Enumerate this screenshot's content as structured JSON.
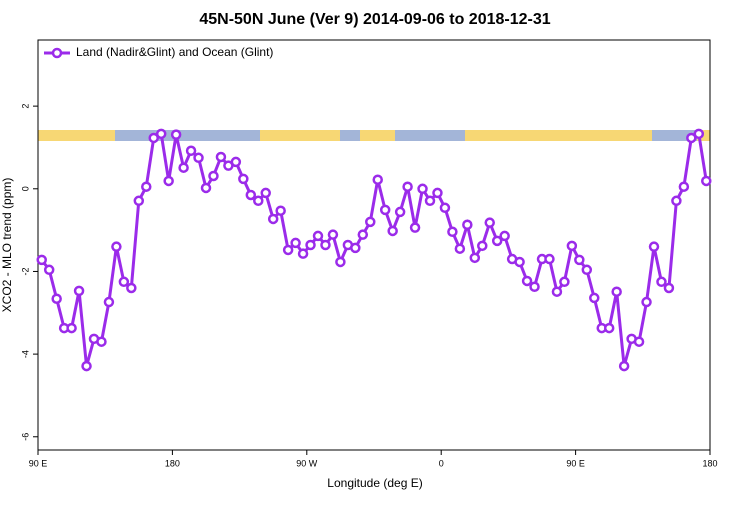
{
  "chart_data": {
    "type": "line",
    "title": "45N-50N June (Ver 9)   2014-09-06 to 2018-12-31",
    "x_label": "Longitude (deg E)",
    "y_label": "XCO2 - MLO trend (ppm)",
    "xlim": [
      90,
      540
    ],
    "ylim": [
      -6.32,
      3.6
    ],
    "xticks": [
      {
        "value": 90,
        "label": "90 E"
      },
      {
        "value": 180,
        "label": "180"
      },
      {
        "value": 270,
        "label": "90 W"
      },
      {
        "value": 360,
        "label": "0"
      },
      {
        "value": 450,
        "label": "90 E"
      },
      {
        "value": 540,
        "label": "180"
      }
    ],
    "yticks": [
      2,
      0,
      -2,
      -4,
      -6
    ],
    "grid": false,
    "legend": "top-left",
    "x": [
      92.5,
      97.5,
      102.5,
      107.5,
      112.5,
      117.5,
      122.5,
      127.5,
      132.5,
      137.5,
      142.5,
      147.5,
      152.5,
      157.5,
      162.5,
      167.5,
      172.5,
      177.5,
      182.5,
      187.5,
      192.5,
      197.5,
      202.5,
      207.5,
      212.5,
      217.5,
      222.5,
      227.5,
      232.5,
      237.5,
      242.5,
      247.5,
      252.5,
      257.5,
      262.5,
      267.5,
      272.5,
      277.5,
      282.5,
      287.5,
      292.5,
      297.5,
      302.5,
      307.5,
      312.5,
      317.5,
      322.5,
      327.5,
      332.5,
      337.5,
      342.5,
      347.5,
      352.5,
      357.5,
      362.5,
      367.5,
      372.5,
      377.5,
      382.5,
      387.5,
      392.5,
      397.5,
      402.5,
      407.5,
      412.5,
      417.5,
      422.5,
      427.5,
      432.5,
      437.5,
      442.5,
      447.5,
      452.5,
      457.5,
      462.5,
      467.5,
      472.5,
      477.5,
      482.5,
      487.5,
      492.5,
      497.5,
      502.5,
      507.5,
      512.5,
      517.5,
      522.5,
      527.5,
      532.5,
      537.5
    ],
    "series": [
      {
        "name": "Land (Nadir&Glint) and Ocean (Glint)",
        "color": "#9b2bea",
        "values": [
          -1.72,
          -1.96,
          -2.66,
          -3.37,
          -3.37,
          -2.47,
          -4.29,
          -3.63,
          -3.7,
          -2.74,
          -1.4,
          -2.25,
          -2.4,
          -0.29,
          0.05,
          1.23,
          1.33,
          0.19,
          1.31,
          0.51,
          0.92,
          0.75,
          0.02,
          0.31,
          0.77,
          0.56,
          0.65,
          0.24,
          -0.15,
          -0.29,
          -0.1,
          -0.73,
          -0.53,
          -1.48,
          -1.31,
          -1.57,
          -1.36,
          -1.14,
          -1.36,
          -1.11,
          -1.77,
          -1.36,
          -1.43,
          -1.11,
          -0.8,
          0.22,
          -0.51,
          -1.02,
          -0.56,
          0.05,
          -0.94,
          0.0,
          -0.29,
          -0.1,
          -0.46,
          -1.04,
          -1.45,
          -0.87,
          -1.67,
          -1.38,
          -0.82,
          -1.26,
          -1.14,
          -1.7,
          -1.77,
          -2.23,
          -2.37,
          -1.7,
          -1.7,
          -2.49,
          -2.25,
          -1.38,
          -1.72,
          -1.96,
          -2.64,
          -3.37,
          -3.37,
          -2.49,
          -4.29,
          -3.63,
          -3.7,
          -2.74,
          -1.4,
          -2.25,
          -2.4,
          -0.29,
          0.05,
          1.23,
          1.33,
          0.19
        ]
      }
    ]
  }
}
